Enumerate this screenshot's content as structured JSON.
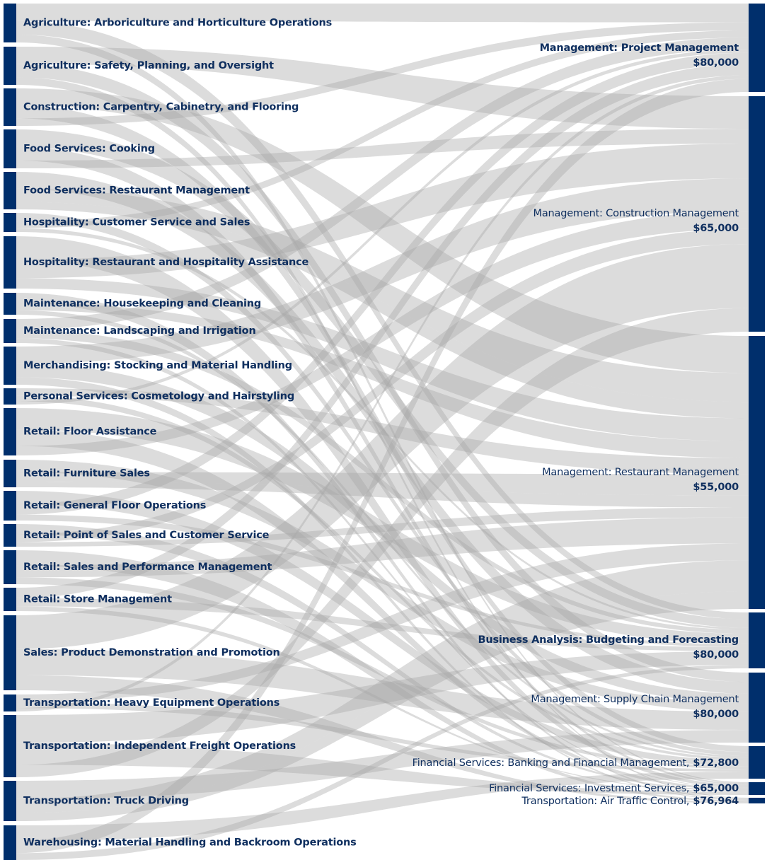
{
  "left_nodes": [
    "Agriculture: Arboriculture and Horticulture Operations",
    "Agriculture: Safety, Planning, and Oversight",
    "Construction: Carpentry, Cabinetry, and Flooring",
    "Food Services: Cooking",
    "Food Services: Restaurant Management",
    "Hospitality: Customer Service and Sales",
    "Hospitality: Restaurant and Hospitality Assistance",
    "Maintenance: Housekeeping and Cleaning",
    "Maintenance: Landscaping and Irrigation",
    "Merchandising: Stocking and Material Handling",
    "Personal Services: Cosmetology and Hairstyling",
    "Retail: Floor Assistance",
    "Retail: Furniture Sales",
    "Retail: General Floor Operations",
    "Retail: Point of Sales and Customer Service",
    "Retail: Sales and Performance Management",
    "Retail: Store Management",
    "Sales: Product Demonstration and Promotion",
    "Transportation: Heavy Equipment Operations",
    "Transportation: Independent Freight Operations",
    "Transportation: Truck Driving",
    "Warehousing: Material Handling and Backroom Operations"
  ],
  "right_nodes": [
    {
      "label": "Management: Project Management",
      "salary": "$80,000"
    },
    {
      "label": "Management: Construction Management",
      "salary": "$65,000"
    },
    {
      "label": "Management: Restaurant Management",
      "salary": "$55,000"
    },
    {
      "label": "Business Analysis:  Budgeting and Forecasting",
      "salary": "$80,000"
    },
    {
      "label": "Management: Supply Chain Management",
      "salary": "$80,000"
    },
    {
      "label": "Financial Services: Banking and Financial Management,",
      "salary": "$72,800"
    },
    {
      "label": "Financial Services: Investment Services,",
      "salary": "$65,000"
    },
    {
      "label": "Transportation: Air Traffic Control,",
      "salary": "$76,964"
    }
  ]
}
